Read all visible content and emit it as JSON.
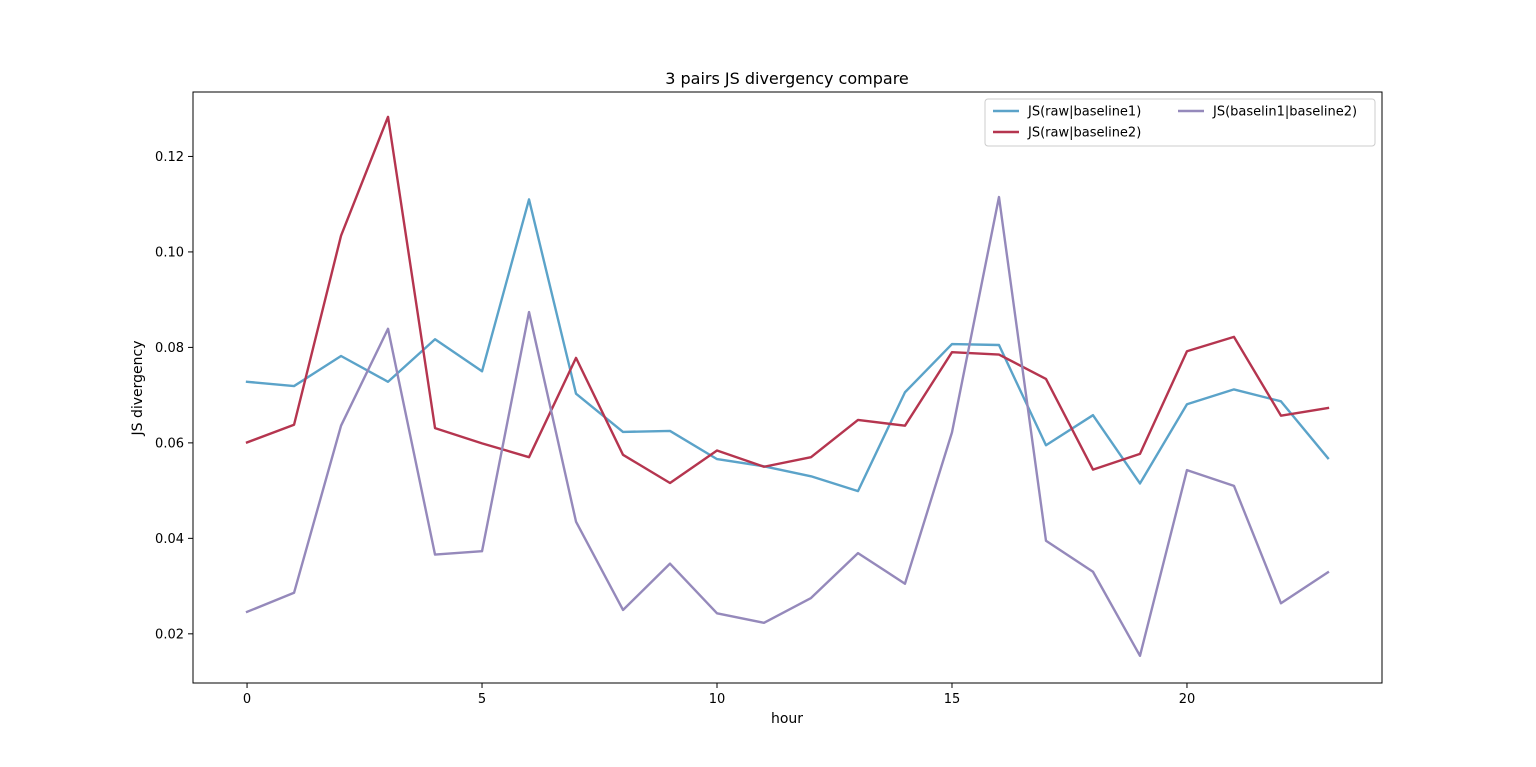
{
  "chart_data": {
    "type": "line",
    "title": "3 pairs JS divergency compare",
    "xlabel": "hour",
    "ylabel": "JS divergency",
    "xlim": [
      -1.15,
      24.15
    ],
    "ylim": [
      0.0097,
      0.1335
    ],
    "xticks": [
      0,
      5,
      10,
      15,
      20
    ],
    "xtick_labels": [
      "0",
      "5",
      "10",
      "15",
      "20"
    ],
    "yticks": [
      0.02,
      0.04,
      0.06,
      0.08,
      0.1,
      0.12
    ],
    "ytick_labels": [
      "0.02",
      "0.04",
      "0.06",
      "0.08",
      "0.10",
      "0.12"
    ],
    "grid": false,
    "legend_position": "top-right",
    "legend_columns": 2,
    "x": [
      0,
      1,
      2,
      3,
      4,
      5,
      6,
      7,
      8,
      9,
      10,
      11,
      12,
      13,
      14,
      15,
      16,
      17,
      18,
      19,
      20,
      21,
      22,
      23
    ],
    "series": [
      {
        "name": "JS(raw|baseline1)",
        "color": "#5ba3c9",
        "values": [
          0.0728,
          0.0719,
          0.0782,
          0.0728,
          0.0817,
          0.075,
          0.111,
          0.0703,
          0.0623,
          0.0625,
          0.0566,
          0.0551,
          0.053,
          0.0499,
          0.0706,
          0.0807,
          0.0805,
          0.0595,
          0.0658,
          0.0515,
          0.0681,
          0.0712,
          0.0687,
          0.0568
        ]
      },
      {
        "name": "JS(raw|baseline2)",
        "color": "#b5354f",
        "values": [
          0.0601,
          0.0638,
          0.1034,
          0.1283,
          0.0631,
          0.0599,
          0.057,
          0.0778,
          0.0575,
          0.0516,
          0.0584,
          0.055,
          0.057,
          0.0648,
          0.0636,
          0.079,
          0.0785,
          0.0734,
          0.0544,
          0.0577,
          0.0792,
          0.0822,
          0.0657,
          0.0673
        ]
      },
      {
        "name": "JS(baselin1|baseline2)",
        "color": "#9589bb",
        "values": [
          0.0246,
          0.0286,
          0.0636,
          0.0839,
          0.0366,
          0.0373,
          0.0874,
          0.0435,
          0.025,
          0.0347,
          0.0243,
          0.0223,
          0.0275,
          0.0369,
          0.0305,
          0.0622,
          0.1115,
          0.0395,
          0.033,
          0.0154,
          0.0543,
          0.051,
          0.0264,
          0.0329
        ]
      }
    ]
  }
}
